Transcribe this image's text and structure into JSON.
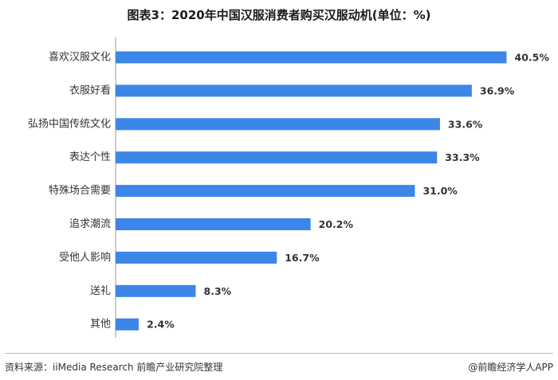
{
  "chart_data": {
    "type": "bar",
    "orientation": "horizontal",
    "title": "图表3：2020年中国汉服消费者购买汉服动机(单位：%)",
    "categories": [
      "喜欢汉服文化",
      "衣服好看",
      "弘扬中国传统文化",
      "表达个性",
      "特殊场合需要",
      "追求潮流",
      "受他人影响",
      "送礼",
      "其他"
    ],
    "values": [
      40.5,
      36.9,
      33.6,
      33.3,
      31.0,
      20.2,
      16.7,
      8.3,
      2.4
    ],
    "value_labels": [
      "40.5%",
      "36.9%",
      "33.6%",
      "33.3%",
      "31.0%",
      "20.2%",
      "16.7%",
      "8.3%",
      "2.4%"
    ],
    "xlim": [
      0,
      45
    ],
    "grid": false,
    "legend": "none",
    "bar_color": "#3c86e8"
  },
  "footer": {
    "source": "资料来源：iiMedia Research 前瞻产业研究院整理",
    "credit": "@前瞻经济学人APP"
  }
}
